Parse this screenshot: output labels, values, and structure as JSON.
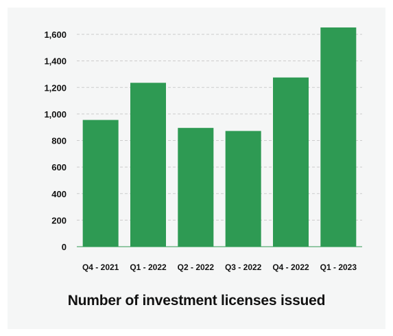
{
  "chart_data": {
    "type": "bar",
    "title": "Number of investment licenses issued",
    "categories": [
      "Q4 - 2021",
      "Q1 - 2022",
      "Q2 - 2022",
      "Q3 - 2022",
      "Q4 - 2022",
      "Q1 - 2023"
    ],
    "values": [
      955,
      1235,
      895,
      872,
      1275,
      1652
    ],
    "xlabel": "",
    "ylabel": "",
    "ylim": [
      0,
      1600
    ],
    "yticks": [
      "0",
      "200",
      "400",
      "600",
      "800",
      "1,000",
      "1,200",
      "1,400",
      "1,600"
    ],
    "ytick_values": [
      0,
      200,
      400,
      600,
      800,
      1000,
      1200,
      1400,
      1600
    ],
    "grid": true,
    "bar_color": "#2e9a53",
    "grid_color": "#cccccc",
    "background_color": "#f5f6f6"
  }
}
